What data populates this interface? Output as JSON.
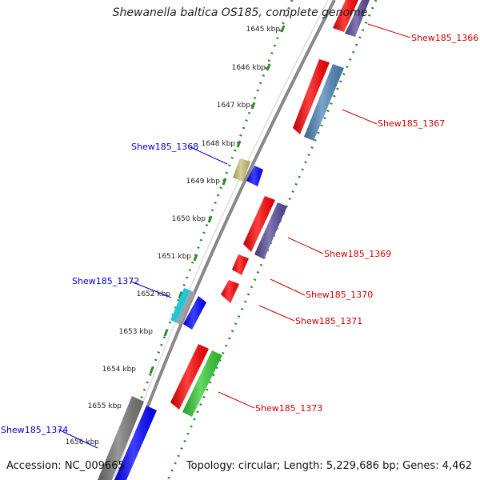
{
  "title": "Shewanella baltica OS185, complete genome",
  "footer": {
    "accession": "Accession: NC_009665",
    "topology": "Topology: circular; Length: 5,229,686 bp; Genes: 4,462"
  },
  "ticks": [
    "1645 kbp",
    "1646 kbp",
    "1647 kbp",
    "1648 kbp",
    "1649 kbp",
    "1650 kbp",
    "1651 kbp",
    "1652 kbp",
    "1653 kbp",
    "1654 kbp",
    "1655 kbp",
    "1656 kbp"
  ],
  "genes": [
    {
      "id": "g1366",
      "label": "Shew185_1366",
      "side": "right",
      "color": "#cc0000"
    },
    {
      "id": "g1367",
      "label": "Shew185_1367",
      "side": "right",
      "color": "#cc0000"
    },
    {
      "id": "g1368",
      "label": "Shew185_1368",
      "side": "left",
      "color": "#0000cc"
    },
    {
      "id": "g1369",
      "label": "Shew185_1369",
      "side": "right",
      "color": "#cc0000"
    },
    {
      "id": "g1370",
      "label": "Shew185_1370",
      "side": "right",
      "color": "#cc0000"
    },
    {
      "id": "g1371",
      "label": "Shew185_1371",
      "side": "right",
      "color": "#cc0000"
    },
    {
      "id": "g1372",
      "label": "Shew185_1372",
      "side": "left",
      "color": "#0000cc"
    },
    {
      "id": "g1373",
      "label": "Shew185_1373",
      "side": "right",
      "color": "#cc0000"
    },
    {
      "id": "g1374",
      "label": "Shew185_1374",
      "side": "left",
      "color": "#0000cc"
    }
  ],
  "colors": {
    "backbone": "#888888",
    "dotted_ring": "#2a8a2a",
    "red": "#ff0000",
    "steel_blue": "#4f86b8",
    "slate_purple": "#5a4a9a",
    "blue": "#0000ff",
    "khaki": "#c8c077",
    "cyan": "#22c6d8",
    "gray": "#777777",
    "green": "#33cc33"
  }
}
